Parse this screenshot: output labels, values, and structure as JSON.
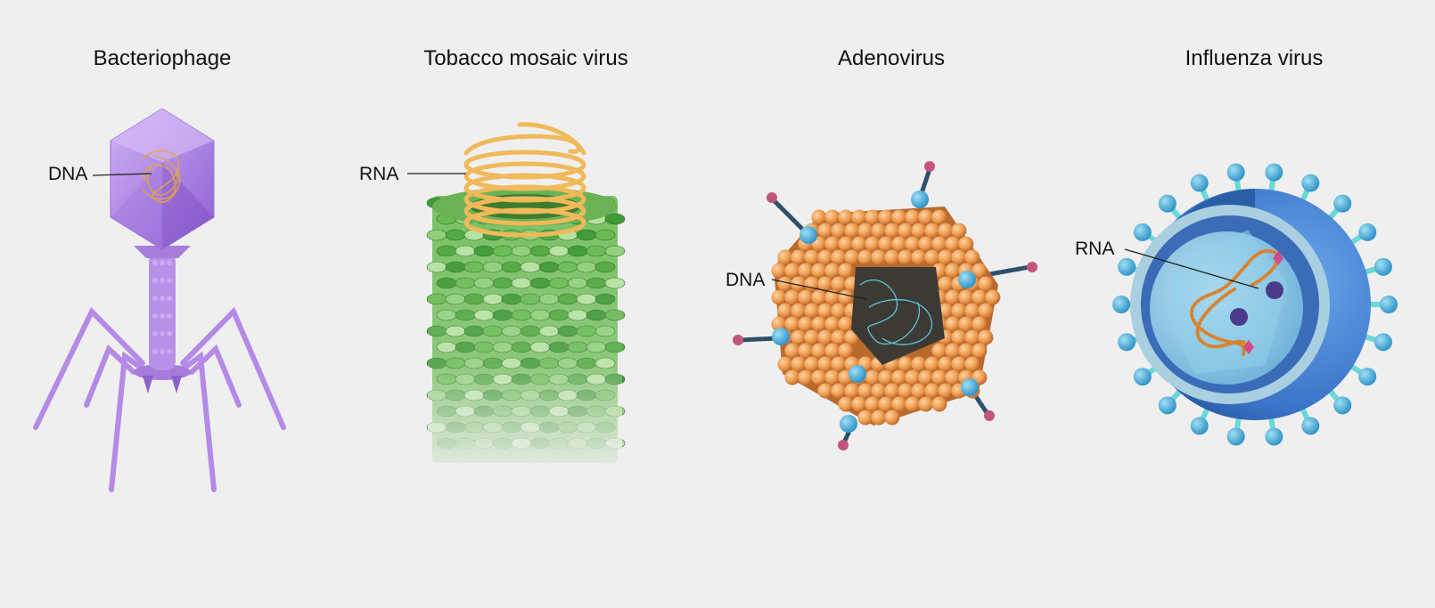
{
  "panels": [
    {
      "title": "Bacteriophage",
      "label": "DNA"
    },
    {
      "title": "Tobacco mosaic virus",
      "label": "RNA"
    },
    {
      "title": "Adenovirus",
      "label": "DNA"
    },
    {
      "title": "Influenza virus",
      "label": "RNA"
    }
  ],
  "colors": {
    "background": "#efefef",
    "phage": "#b48ae6",
    "tmv_protein": "#5fb84c",
    "tmv_rna": "#f0b95a",
    "adeno_capsomere": "#eb9a4e",
    "adeno_fiber_tip": "#c2557a",
    "influenza_envelope": "#3f7fcf",
    "influenza_spike": "#5bb5e0",
    "nucleic_strand": "#e2a44a"
  }
}
